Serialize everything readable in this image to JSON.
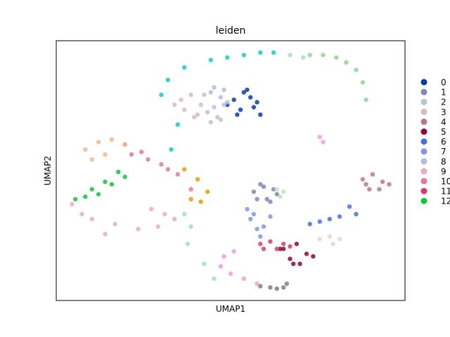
{
  "chart_data": {
    "type": "scatter",
    "title": "leiden",
    "xlabel": "UMAP1",
    "ylabel": "UMAP2",
    "grid": false,
    "legend_position": "right",
    "series": [
      {
        "name": "0",
        "color": "#023fa5",
        "x": [
          5.1,
          5.4,
          5.6,
          5.7,
          5.3,
          4.9,
          5.8,
          5.5,
          5.2,
          5.9
        ],
        "y": [
          7.6,
          7.9,
          7.7,
          7.3,
          7.2,
          7.4,
          7.5,
          8.0,
          7.0,
          7.0
        ]
      },
      {
        "name": "1",
        "color": "#7d87b9",
        "x": [
          5.7,
          6.0,
          6.3,
          6.1,
          5.8,
          6.4,
          5.9,
          6.2
        ],
        "y": [
          3.9,
          4.1,
          4.0,
          3.6,
          3.6,
          3.8,
          4.2,
          3.5
        ]
      },
      {
        "name": "2",
        "color": "#bec1d4",
        "x": [
          4.4,
          4.6,
          4.5,
          4.3,
          4.7,
          4.8
        ],
        "y": [
          6.7,
          6.9,
          7.3,
          7.1,
          6.8,
          7.4
        ]
      },
      {
        "name": "3",
        "color": "#d6bcc0",
        "x": [
          3.5,
          3.8,
          4.1,
          3.6,
          4.0,
          3.3,
          4.2,
          3.9
        ],
        "y": [
          7.6,
          7.8,
          7.4,
          7.2,
          7.0,
          7.4,
          7.8,
          6.9
        ]
      },
      {
        "name": "4",
        "color": "#bb7784",
        "x": [
          9.0,
          9.3,
          9.6,
          9.2,
          9.5,
          9.8,
          9.1
        ],
        "y": [
          4.4,
          4.6,
          4.3,
          4.0,
          4.0,
          4.2,
          4.2
        ]
      },
      {
        "name": "5",
        "color": "#8e063b",
        "x": [
          6.6,
          7.0,
          7.3,
          6.8,
          7.1,
          7.5,
          6.9,
          6.5
        ],
        "y": [
          1.6,
          1.8,
          1.4,
          1.2,
          1.0,
          1.3,
          1.0,
          1.6
        ]
      },
      {
        "name": "6",
        "color": "#4a6fe3",
        "x": [
          8.6,
          8.8,
          8.3,
          8.0,
          7.7,
          7.4
        ],
        "y": [
          3.3,
          3.0,
          2.9,
          2.8,
          2.7,
          2.6
        ]
      },
      {
        "name": "7",
        "color": "#8595e1",
        "x": [
          5.5,
          5.6,
          5.8,
          5.7,
          6.0,
          5.9,
          6.2
        ],
        "y": [
          3.2,
          2.8,
          2.4,
          3.0,
          2.5,
          2.1,
          2.9
        ]
      },
      {
        "name": "8",
        "color": "#b5bbe3",
        "x": [
          4.5,
          4.8,
          4.7,
          4.9,
          4.4
        ],
        "y": [
          8.1,
          8.0,
          7.7,
          7.5,
          7.9
        ]
      },
      {
        "name": "9",
        "color": "#e6afb9",
        "x": [
          0.2,
          0.8,
          1.5,
          2.2,
          2.8,
          3.0,
          1.2,
          0.5,
          2.6,
          3.3
        ],
        "y": [
          3.4,
          2.8,
          2.6,
          2.4,
          2.5,
          3.0,
          2.2,
          3.0,
          3.2,
          2.8
        ]
      },
      {
        "name": "10",
        "color": "#e07b91",
        "x": [
          1.8,
          2.3,
          2.9,
          3.4,
          3.8,
          2.5,
          3.1,
          2.0
        ],
        "y": [
          5.8,
          5.5,
          5.0,
          4.6,
          4.0,
          5.2,
          4.8,
          5.4
        ]
      },
      {
        "name": "11",
        "color": "#d33f6a",
        "x": [
          5.9,
          6.2,
          6.6,
          6.4,
          6.0,
          6.8
        ],
        "y": [
          1.8,
          1.9,
          1.8,
          1.6,
          1.6,
          1.7
        ]
      },
      {
        "name": "12",
        "color": "#11c638",
        "x": [
          0.3,
          0.8,
          1.2,
          1.6,
          1.8,
          1.0,
          0.6,
          1.4
        ],
        "y": [
          3.6,
          4.0,
          4.3,
          4.7,
          4.5,
          3.8,
          3.7,
          4.2
        ]
      },
      {
        "color": "#8dd593",
        "x": [
          7.4,
          7.8,
          8.2,
          8.5,
          8.8,
          9.0,
          9.1
        ],
        "y": [
          9.4,
          9.4,
          9.3,
          9.1,
          8.8,
          8.3,
          7.6
        ]
      },
      {
        "color": "#c6dec7",
        "x": [
          6.4,
          6.6,
          6.5
        ],
        "y": [
          4.0,
          3.9,
          3.7
        ]
      },
      {
        "color": "#ead3c6",
        "x": [
          7.7,
          8.0,
          8.3,
          8.1
        ],
        "y": [
          2.0,
          2.1,
          2.0,
          1.8
        ]
      },
      {
        "color": "#f0b98d",
        "x": [
          0.6,
          1.0,
          1.4,
          1.8,
          0.8,
          1.2
        ],
        "y": [
          5.6,
          5.9,
          6.0,
          5.8,
          5.2,
          5.4
        ]
      },
      {
        "color": "#ef9708",
        "x": [
          3.6,
          4.0,
          4.3,
          3.8,
          4.1
        ],
        "y": [
          4.8,
          4.4,
          3.9,
          3.6,
          3.5
        ]
      },
      {
        "color": "#0fcfc0",
        "x": [
          2.9,
          3.1,
          3.6,
          4.4,
          5.4,
          6.3,
          3.4,
          3.2,
          4.9,
          5.9
        ],
        "y": [
          7.8,
          8.4,
          8.9,
          9.2,
          9.4,
          9.5,
          6.6,
          5.6,
          9.3,
          9.5
        ]
      },
      {
        "color": "#9cded6",
        "x": [
          6.8,
          7.2,
          3.6,
          3.8,
          3.7,
          4.2,
          4.5
        ],
        "y": [
          9.4,
          9.3,
          3.0,
          2.5,
          1.8,
          1.0,
          0.4
        ]
      },
      {
        "color": "#f79cd4",
        "x": [
          5.1,
          4.8,
          4.7,
          5.0,
          5.4,
          5.8,
          7.7,
          7.8
        ],
        "y": [
          1.5,
          1.3,
          0.9,
          0.6,
          0.4,
          0.2,
          6.1,
          5.9
        ]
      },
      {
        "color": "#7f7f7f",
        "x": [
          5.9,
          6.2,
          6.4,
          6.6,
          6.7
        ],
        "y": [
          0.1,
          0.05,
          0.0,
          0.05,
          0.2
        ]
      }
    ]
  }
}
